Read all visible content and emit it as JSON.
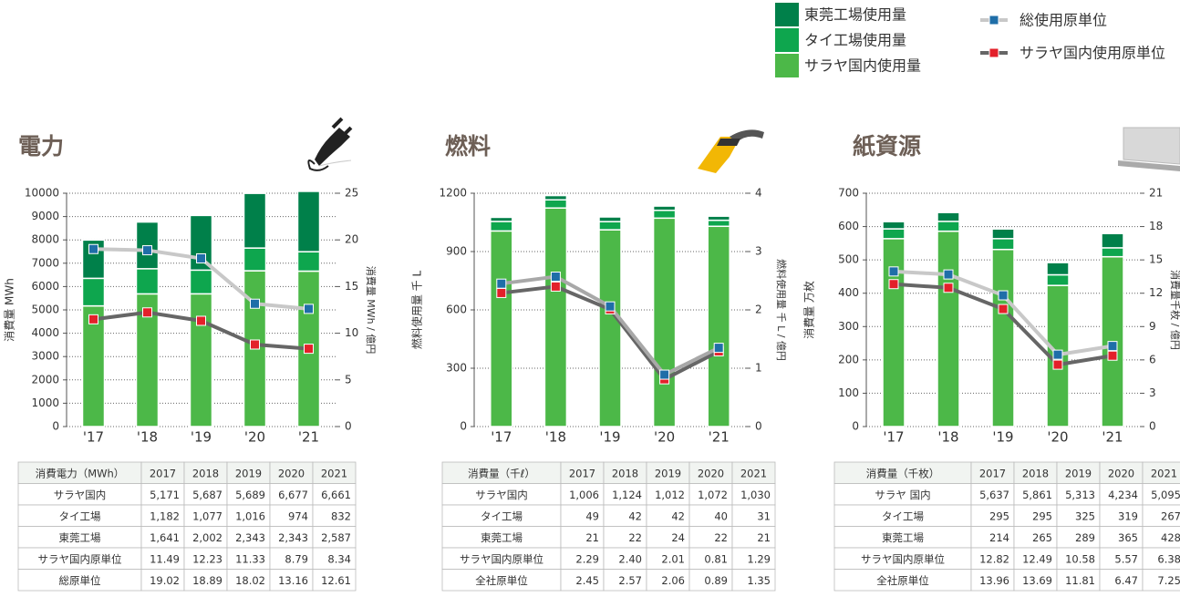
{
  "chart_data": [
    {
      "type": "bar",
      "title": "電力",
      "stacked": true,
      "categories": [
        "'17",
        "'18",
        "'19",
        "'20",
        "'21"
      ],
      "ylabel": "消費量 MWh",
      "y2label": "消費量 MWh / 億円",
      "ylim": [
        0,
        10000
      ],
      "yticks": [
        0,
        1000,
        2000,
        3000,
        4000,
        5000,
        6000,
        7000,
        8000,
        9000,
        10000
      ],
      "y2lim": [
        0,
        25
      ],
      "y2ticks": [
        0,
        5,
        10,
        15,
        20,
        25
      ],
      "grid": true,
      "series": [
        {
          "name": "サラヤ国内使用量",
          "color": "#4cb848",
          "values": [
            5171,
            5687,
            5689,
            6677,
            6661
          ],
          "value_labels": [
            "5,171",
            "5,687",
            "5,689",
            "6,677",
            "6,661"
          ]
        },
        {
          "name": "タイ工場使用量",
          "color": "#0ea64e",
          "values": [
            1182,
            1077,
            1016,
            974,
            832
          ],
          "value_labels": [
            "1,182",
            "1,077",
            "1,016",
            "974",
            "832"
          ]
        },
        {
          "name": "東莞工場使用量",
          "color": "#00804a",
          "values": [
            1641,
            2002,
            2343,
            2343,
            2587
          ],
          "value_labels": [
            "1,641",
            "2,002",
            "2,343",
            "2,343",
            "2,587"
          ]
        },
        {
          "name": "サラヤ国内使用原単位",
          "color": "#e3202a",
          "line_color": "#666666",
          "axis": "y2",
          "values": [
            11.49,
            12.23,
            11.33,
            8.79,
            8.34
          ],
          "value_labels": [
            "11.49",
            "12.23",
            "11.33",
            "8.79",
            "8.34"
          ]
        },
        {
          "name": "総使用原単位",
          "color": "#1f6ea8",
          "line_color": "#c8c8c8",
          "axis": "y2",
          "values": [
            19.02,
            18.89,
            18.02,
            13.16,
            12.61
          ],
          "value_labels": [
            "19.02",
            "18.89",
            "18.02",
            "13.16",
            "12.61"
          ]
        }
      ],
      "table": {
        "header": "消費電力（MWh）",
        "columns": [
          "2017",
          "2018",
          "2019",
          "2020",
          "2021"
        ],
        "rows": [
          "サラヤ国内",
          "タイ工場",
          "東莞工場",
          "サラヤ国内原単位",
          "総原単位"
        ]
      }
    },
    {
      "type": "bar",
      "title": "燃料",
      "stacked": true,
      "categories": [
        "'17",
        "'18",
        "'19",
        "'20",
        "'21"
      ],
      "ylabel": "燃料使用量 千 L",
      "y2label": "燃料使用量 千 L / 億円",
      "ylim": [
        0,
        1200
      ],
      "yticks": [
        0,
        300,
        600,
        900,
        1200
      ],
      "y2lim": [
        0,
        4
      ],
      "y2ticks": [
        0,
        1,
        2,
        3,
        4
      ],
      "grid": true,
      "series": [
        {
          "name": "サラヤ国内使用量",
          "color": "#4cb848",
          "values": [
            1006,
            1124,
            1012,
            1072,
            1030
          ],
          "value_labels": [
            "1,006",
            "1,124",
            "1,012",
            "1,072",
            "1,030"
          ]
        },
        {
          "name": "タイ工場使用量",
          "color": "#0ea64e",
          "values": [
            49,
            42,
            42,
            40,
            31
          ],
          "value_labels": [
            "49",
            "42",
            "42",
            "40",
            "31"
          ]
        },
        {
          "name": "東莞工場使用量",
          "color": "#00804a",
          "values": [
            21,
            22,
            24,
            22,
            21
          ],
          "value_labels": [
            "21",
            "22",
            "24",
            "22",
            "21"
          ]
        },
        {
          "name": "サラヤ国内使用原単位",
          "color": "#e3202a",
          "line_color": "#666666",
          "axis": "y2",
          "values": [
            2.29,
            2.4,
            2.01,
            0.81,
            1.29
          ],
          "value_labels": [
            "2.29",
            "2.40",
            "2.01",
            "0.81",
            "1.29"
          ]
        },
        {
          "name": "総使用原単位",
          "color": "#1f6ea8",
          "line_color": "#a8a8a8",
          "axis": "y2",
          "values": [
            2.45,
            2.57,
            2.06,
            0.89,
            1.35
          ],
          "value_labels": [
            "2.45",
            "2.57",
            "2.06",
            "0.89",
            "1.35"
          ]
        }
      ],
      "table": {
        "header": "消費量（千ℓ）",
        "columns": [
          "2017",
          "2018",
          "2019",
          "2020",
          "2021"
        ],
        "rows": [
          "サラヤ国内",
          "タイ工場",
          "東莞工場",
          "サラヤ国内原単位",
          "全社原単位"
        ]
      }
    },
    {
      "type": "bar",
      "title": "紙資源",
      "stacked": true,
      "categories": [
        "'17",
        "'18",
        "'19",
        "'20",
        "'21"
      ],
      "ylabel": "消費量 万枚",
      "y2label": "消費量千枚 / 億円",
      "ylim": [
        0,
        700
      ],
      "yticks": [
        0,
        100,
        200,
        300,
        400,
        500,
        600,
        700
      ],
      "y2lim": [
        0,
        21
      ],
      "y2ticks": [
        0,
        3,
        6,
        9,
        12,
        15,
        18,
        21
      ],
      "grid": true,
      "series": [
        {
          "name": "サラヤ国内使用量",
          "color": "#4cb848",
          "values": [
            563.7,
            586.1,
            531.3,
            423.4,
            509.5
          ],
          "value_labels": [
            "5,637",
            "5,861",
            "5,313",
            "4,234",
            "5,095"
          ]
        },
        {
          "name": "タイ工場使用量",
          "color": "#0ea64e",
          "values": [
            29.5,
            29.5,
            32.5,
            31.9,
            26.7
          ],
          "value_labels": [
            "295",
            "295",
            "325",
            "319",
            "267"
          ]
        },
        {
          "name": "東莞工場使用量",
          "color": "#00804a",
          "values": [
            21.4,
            26.5,
            28.9,
            36.5,
            42.8
          ],
          "value_labels": [
            "214",
            "265",
            "289",
            "365",
            "428"
          ]
        },
        {
          "name": "サラヤ国内使用原単位",
          "color": "#e3202a",
          "line_color": "#666666",
          "axis": "y2",
          "values": [
            12.82,
            12.49,
            10.58,
            5.57,
            6.38
          ],
          "value_labels": [
            "12.82",
            "12.49",
            "10.58",
            "5.57",
            "6.38"
          ]
        },
        {
          "name": "総使用原単位",
          "color": "#1f6ea8",
          "line_color": "#c8c8c8",
          "axis": "y2",
          "values": [
            13.96,
            13.69,
            11.81,
            6.47,
            7.25
          ],
          "value_labels": [
            "13.96",
            "13.69",
            "11.81",
            "6.47",
            "7.25"
          ]
        }
      ],
      "table": {
        "header": "消費量（千枚）",
        "columns": [
          "2017",
          "2018",
          "2019",
          "2020",
          "2021"
        ],
        "rows": [
          "サラヤ 国内",
          "タイ工場",
          "東莞工場",
          "サラヤ国内原単位",
          "全社原単位"
        ]
      }
    }
  ]
}
